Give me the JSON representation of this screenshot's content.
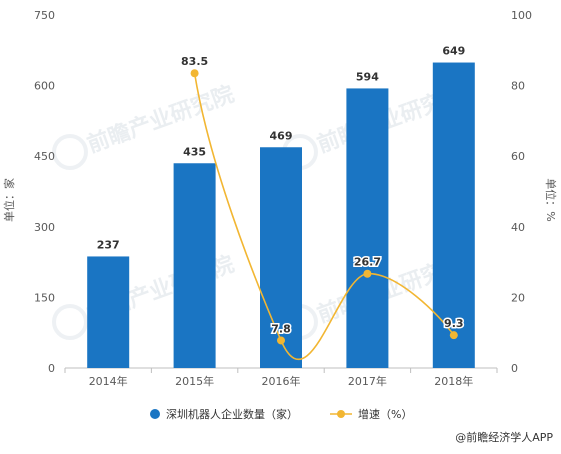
{
  "chart_data": {
    "type": "bar",
    "categories": [
      "2014年",
      "2015年",
      "2016年",
      "2017年",
      "2018年"
    ],
    "series": [
      {
        "name": "深圳机器人企业数量（家）",
        "type": "bar",
        "axis": "left",
        "color": "#1a75c3",
        "values": [
          237,
          435,
          469,
          594,
          649
        ],
        "labels": [
          "237",
          "435",
          "469",
          "594",
          "649"
        ]
      },
      {
        "name": "增速（%）",
        "type": "line",
        "smooth": true,
        "axis": "right",
        "color": "#f2b632",
        "values": [
          null,
          83.5,
          7.8,
          26.7,
          9.3
        ],
        "labels": [
          "",
          "83.5",
          "7.8",
          "26.7",
          "9.3"
        ]
      }
    ],
    "ylabel": "单位：家",
    "y2label": "单位：%",
    "ylim": [
      0,
      750
    ],
    "y2lim": [
      0,
      100
    ],
    "yticks": [
      "0",
      "150",
      "300",
      "450",
      "600",
      "750"
    ],
    "y2ticks": [
      "0",
      "20",
      "40",
      "60",
      "80",
      "100"
    ],
    "grid": false,
    "legend_position": "bottom"
  },
  "source": "@前瞻经济学人APP",
  "watermark": "前瞻产业研究院"
}
